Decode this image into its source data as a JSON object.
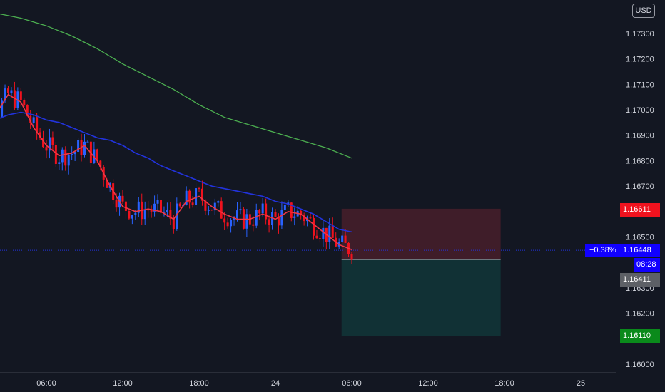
{
  "toolbar": {
    "currency": "USD"
  },
  "chart_data": {
    "type": "candlestick",
    "instrument_currency": "USD",
    "price_axis": {
      "ticks": [
        "1.17300",
        "1.17200",
        "1.17100",
        "1.17000",
        "1.16900",
        "1.16800",
        "1.16700",
        "1.16500",
        "1.16300",
        "1.16200",
        "1.16000"
      ],
      "ylim": [
        1.1593,
        1.1743
      ]
    },
    "time_axis": {
      "ticks": [
        "06:00",
        "12:00",
        "18:00",
        "24",
        "06:00",
        "12:00",
        "18:00",
        "25"
      ]
    },
    "current_price": "1.16448",
    "change_percent": "−0.38%",
    "countdown": "08:28",
    "position": {
      "upper_level": "1.16611",
      "entry_level": "1.16411",
      "lower_level": "1.16110"
    },
    "series": [
      {
        "name": "",
        "kind": "moving-average",
        "color": "#4caf50",
        "x_hours": [
          0,
          2,
          4,
          6,
          8,
          10,
          12,
          14,
          16,
          18,
          20,
          22,
          24,
          26,
          28,
          30
        ],
        "values": [
          1.17415,
          1.1738,
          1.1736,
          1.1733,
          1.1729,
          1.1724,
          1.1718,
          1.1713,
          1.1708,
          1.1702,
          1.1697,
          1.1694,
          1.1691,
          1.1688,
          1.1685,
          1.1681
        ]
      },
      {
        "name": "",
        "kind": "moving-average",
        "color": "#2233dd",
        "x_hours": [
          0,
          1,
          2,
          3,
          4,
          5,
          6,
          7,
          8,
          9,
          10,
          11,
          12,
          13,
          14,
          15,
          16,
          17,
          18,
          19,
          20,
          21,
          22,
          23,
          24,
          25,
          26,
          27,
          28,
          29,
          30
        ],
        "values": [
          1.1695,
          1.1694,
          1.1696,
          1.1698,
          1.1699,
          1.1698,
          1.1696,
          1.1695,
          1.1693,
          1.1691,
          1.1689,
          1.1688,
          1.1686,
          1.1683,
          1.1681,
          1.1678,
          1.1676,
          1.1674,
          1.1672,
          1.167,
          1.1669,
          1.1668,
          1.1667,
          1.1666,
          1.1664,
          1.1663,
          1.1661,
          1.1659,
          1.1656,
          1.1653,
          1.1652
        ]
      },
      {
        "name": "",
        "kind": "moving-average",
        "color": "#f23645",
        "x_hours": [
          0,
          1,
          2,
          3,
          4,
          5,
          6,
          7,
          8,
          9,
          10,
          11,
          12,
          13,
          14,
          15,
          16,
          17,
          18,
          19,
          20,
          21,
          22,
          23,
          24,
          25,
          26,
          27,
          28,
          29,
          30
        ],
        "values": [
          1.1688,
          1.1688,
          1.1698,
          1.1706,
          1.1703,
          1.1693,
          1.1686,
          1.1682,
          1.1683,
          1.1686,
          1.168,
          1.167,
          1.1662,
          1.166,
          1.1661,
          1.166,
          1.1657,
          1.1664,
          1.1666,
          1.1662,
          1.1659,
          1.1657,
          1.1657,
          1.1659,
          1.1657,
          1.166,
          1.1659,
          1.1655,
          1.1651,
          1.1647,
          1.1645
        ]
      }
    ]
  }
}
